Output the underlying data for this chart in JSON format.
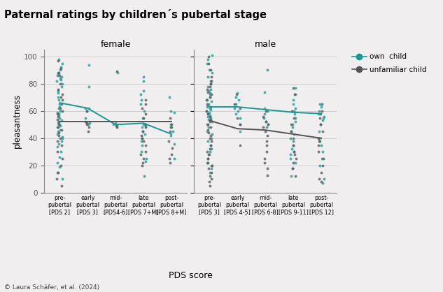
{
  "title": "Paternal ratings by children´s pubertal stage",
  "ylabel": "pleasantness",
  "xlabel": "PDS score",
  "copyright": "© Laura Schäfer, et al. (2024)",
  "teal_color": "#1a9896",
  "gray_color": "#555555",
  "bg_color": "#f0eeee",
  "ylim": [
    0,
    105
  ],
  "yticks": [
    0,
    20,
    40,
    60,
    80,
    100
  ],
  "female_xtick_labels": [
    "pre-\npubertal\n[PDS 2]",
    "early\npubertal\n[PDS 3]",
    "mid-\npubertal\n[PDS4-6]",
    "late\npubertal\n[PDS 7+M]",
    "post-\npubertal\n[PDS 8+M]"
  ],
  "male_xtick_labels": [
    "pre-\npubertal\n[PDS 3]",
    "early\npubertal\n[PDS 4-5]",
    "mid-\npubertal\n[PDS 6-8]",
    "late\npubertal\n[PDS 9-11]",
    "post-\npubertal\n[PDS 12]"
  ],
  "female_own_means": [
    66,
    62,
    50,
    51,
    43
  ],
  "female_unfam_means": [
    52,
    52,
    52,
    52,
    52
  ],
  "male_own_means": [
    63,
    63,
    61,
    59,
    58
  ],
  "male_unfam_means": [
    53,
    47,
    46,
    43,
    40
  ],
  "female_own_scatter": {
    "0": [
      98,
      95,
      92,
      90,
      88,
      87,
      86,
      85,
      84,
      83,
      82,
      80,
      78,
      75,
      73,
      70,
      68,
      65,
      63,
      62,
      60,
      59,
      58,
      57,
      55,
      53,
      51,
      50,
      49,
      48,
      46,
      45,
      43,
      41,
      40,
      38,
      36,
      34,
      30,
      26,
      22,
      19,
      15,
      10
    ],
    "1": [
      94,
      78,
      62,
      62,
      60,
      55,
      51,
      50
    ],
    "2": [
      88,
      51,
      50,
      49
    ],
    "3": [
      85,
      82,
      75,
      72,
      68,
      65,
      60,
      55,
      50,
      49,
      48,
      45,
      43,
      40,
      38,
      35,
      30,
      25,
      23,
      12
    ],
    "4": [
      70,
      60,
      59,
      50,
      48,
      45,
      42,
      36,
      25
    ]
  },
  "female_unfam_scatter": {
    "0": [
      97,
      91,
      88,
      86,
      80,
      76,
      72,
      70,
      68,
      65,
      62,
      60,
      58,
      56,
      54,
      52,
      50,
      48,
      46,
      44,
      42,
      40,
      38,
      35,
      30,
      25,
      20,
      15,
      10,
      5
    ],
    "1": [
      60,
      52,
      51,
      50,
      48,
      45
    ],
    "2": [
      89,
      49,
      48
    ],
    "3": [
      68,
      65,
      62,
      58,
      55,
      50,
      48,
      45,
      42,
      40,
      38,
      35,
      30,
      28,
      25,
      22,
      20
    ],
    "4": [
      55,
      50,
      48,
      45,
      38,
      33,
      28,
      25,
      22
    ]
  },
  "male_own_scatter": {
    "0": [
      101,
      98,
      95,
      90,
      88,
      85,
      82,
      80,
      78,
      76,
      75,
      73,
      72,
      70,
      68,
      67,
      65,
      64,
      63,
      62,
      61,
      60,
      59,
      58,
      57,
      56,
      55,
      54,
      52,
      50,
      48,
      45,
      43,
      40,
      38,
      35,
      32,
      30,
      28,
      25,
      22,
      20,
      18,
      15
    ],
    "1": [
      73,
      70,
      68,
      65,
      62,
      60,
      58,
      55,
      50,
      45
    ],
    "2": [
      90,
      74,
      62,
      60,
      58,
      55,
      52,
      50,
      48
    ],
    "3": [
      77,
      72,
      68,
      65,
      62,
      60,
      58,
      55,
      52,
      50,
      48,
      45,
      43,
      40,
      38,
      35,
      32,
      30,
      28,
      25,
      22,
      18,
      12
    ],
    "4": [
      65,
      63,
      60,
      58,
      56,
      55,
      53,
      50,
      45,
      40,
      38,
      35,
      30,
      25,
      20,
      10,
      7
    ]
  },
  "male_unfam_scatter": {
    "0": [
      100,
      95,
      90,
      85,
      82,
      80,
      78,
      76,
      74,
      72,
      70,
      68,
      65,
      63,
      60,
      58,
      56,
      54,
      52,
      50,
      48,
      46,
      44,
      42,
      40,
      38,
      35,
      32,
      30,
      28,
      25,
      22,
      20,
      18,
      15,
      12,
      10,
      8,
      5
    ],
    "1": [
      72,
      65,
      62,
      55,
      50,
      35
    ],
    "2": [
      60,
      56,
      52,
      50,
      48,
      45,
      42,
      38,
      35,
      30,
      25,
      22,
      18,
      13
    ],
    "3": [
      77,
      72,
      60,
      55,
      50,
      45,
      40,
      35,
      30,
      28,
      25,
      22,
      18,
      12
    ],
    "4": [
      65,
      60,
      58,
      55,
      50,
      45,
      40,
      38,
      35,
      30,
      25,
      20,
      15,
      10,
      8
    ]
  }
}
